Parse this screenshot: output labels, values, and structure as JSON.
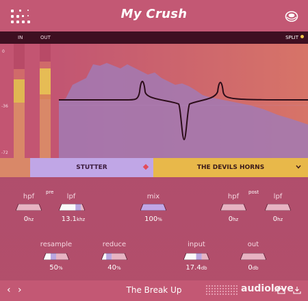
{
  "header": {
    "title": "My Crush",
    "logo_icon": "dot-grid-logo-icon",
    "settings_icon": "settings-icon"
  },
  "display": {
    "in_label": "IN",
    "out_label": "OUT",
    "split_label": "SPLIT",
    "scale": [
      "0",
      "-36",
      "-72"
    ],
    "in_level": 0.78,
    "out_level": 0.82
  },
  "tabs": {
    "left": "STUTTER",
    "right": "THE DEVILS HORNS"
  },
  "controls": {
    "pre_label": "pre",
    "post_label": "post",
    "pre_hpf": {
      "label": "hpf",
      "value": "0",
      "unit": "hz",
      "level": 0.0
    },
    "pre_lpf": {
      "label": "lpf",
      "value": "13.1",
      "unit": "khz",
      "level": 0.85
    },
    "mix": {
      "label": "mix",
      "value": "100",
      "unit": "%",
      "level": 1.0
    },
    "post_hpf": {
      "label": "hpf",
      "value": "0",
      "unit": "hz",
      "level": 0.0
    },
    "post_lpf": {
      "label": "lpf",
      "value": "0",
      "unit": "hz",
      "level": 0.0
    },
    "resample": {
      "label": "resample",
      "value": "50",
      "unit": "%",
      "level": 0.5
    },
    "reduce": {
      "label": "reduce",
      "value": "40",
      "unit": "%",
      "level": 0.4
    },
    "input": {
      "label": "input",
      "value": "17.4",
      "unit": "db",
      "level": 0.7
    },
    "out": {
      "label": "out",
      "value": "0",
      "unit": "db",
      "level": 0.0
    }
  },
  "footer": {
    "preset_name": "The Break Up",
    "prev": "‹",
    "next": "›",
    "watermark": "audioløve"
  },
  "colors": {
    "accent_yellow": "#e8b84a",
    "accent_lavender": "#c0a6e6",
    "background": "#b8516e"
  }
}
